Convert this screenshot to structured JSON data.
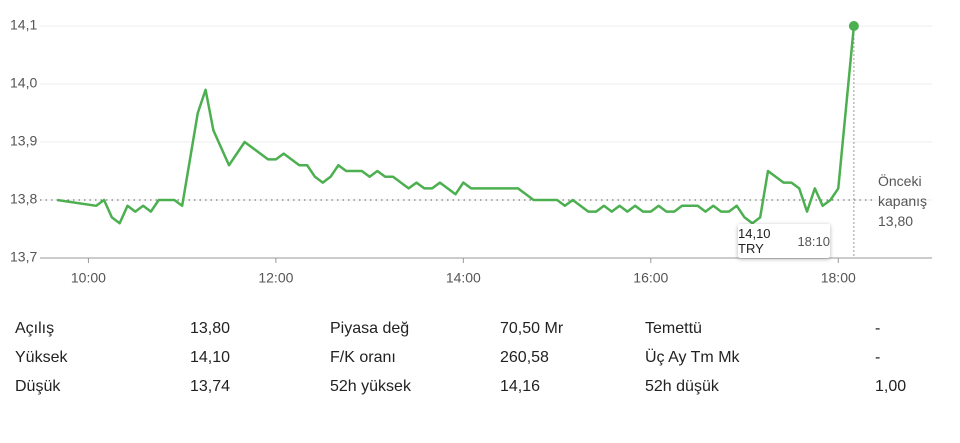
{
  "chart_data": {
    "type": "line",
    "x": [
      "09:40",
      "10:05",
      "10:10",
      "10:15",
      "10:20",
      "10:25",
      "10:30",
      "10:35",
      "10:40",
      "10:45",
      "10:55",
      "11:00",
      "11:10",
      "11:15",
      "11:20",
      "11:30",
      "11:40",
      "11:55",
      "12:00",
      "12:05",
      "12:15",
      "12:20",
      "12:25",
      "12:30",
      "12:35",
      "12:40",
      "12:45",
      "12:55",
      "13:00",
      "13:05",
      "13:10",
      "13:15",
      "13:25",
      "13:30",
      "13:35",
      "13:40",
      "13:45",
      "13:55",
      "14:00",
      "14:05",
      "14:35",
      "14:45",
      "15:00",
      "15:05",
      "15:10",
      "15:20",
      "15:25",
      "15:30",
      "15:35",
      "15:40",
      "15:45",
      "15:50",
      "15:55",
      "16:00",
      "16:05",
      "16:10",
      "16:15",
      "16:20",
      "16:30",
      "16:35",
      "16:40",
      "16:45",
      "16:50",
      "16:55",
      "17:00",
      "17:05",
      "17:10",
      "17:15",
      "17:25",
      "17:30",
      "17:35",
      "17:40",
      "17:45",
      "17:50",
      "17:55",
      "18:00",
      "18:10"
    ],
    "series": [
      {
        "color": "#4caf50",
        "values": [
          13.8,
          13.79,
          13.8,
          13.77,
          13.76,
          13.79,
          13.78,
          13.79,
          13.78,
          13.8,
          13.8,
          13.79,
          13.95,
          13.99,
          13.92,
          13.86,
          13.9,
          13.87,
          13.87,
          13.88,
          13.86,
          13.86,
          13.84,
          13.83,
          13.84,
          13.86,
          13.85,
          13.85,
          13.84,
          13.85,
          13.84,
          13.84,
          13.82,
          13.83,
          13.82,
          13.82,
          13.83,
          13.81,
          13.83,
          13.82,
          13.82,
          13.8,
          13.8,
          13.79,
          13.8,
          13.78,
          13.78,
          13.79,
          13.78,
          13.79,
          13.78,
          13.79,
          13.78,
          13.78,
          13.79,
          13.78,
          13.78,
          13.79,
          13.79,
          13.78,
          13.79,
          13.78,
          13.78,
          13.79,
          13.77,
          13.76,
          13.77,
          13.85,
          13.83,
          13.83,
          13.82,
          13.78,
          13.82,
          13.79,
          13.8,
          13.82,
          14.1
        ]
      }
    ],
    "xlim": [
      "09:29",
      "19:00"
    ],
    "xticks": [
      "10:00",
      "12:00",
      "14:00",
      "16:00",
      "18:00"
    ],
    "ylim": [
      13.7,
      14.1
    ],
    "yticks": [
      {
        "value": 13.7,
        "label": "13,7"
      },
      {
        "value": 13.8,
        "label": "13,8"
      },
      {
        "value": 13.9,
        "label": "13,9"
      },
      {
        "value": 14.0,
        "label": "14,0"
      },
      {
        "value": 14.1,
        "label": "14,1"
      }
    ],
    "grid": true,
    "previous_close": {
      "value": 13.8,
      "label": "13,80",
      "title": "Önceki kapanış"
    },
    "tooltip": {
      "value_label": "14,10 TRY",
      "time": "18:10"
    }
  },
  "stats": [
    [
      [
        "Açılış",
        "13,80"
      ],
      [
        "Piyasa değ",
        "70,50 Mr"
      ],
      [
        "Temettü",
        "-"
      ]
    ],
    [
      [
        "Yüksek",
        "14,10"
      ],
      [
        "F/K oranı",
        "260,58"
      ],
      [
        "Üç Ay Tm Mk",
        "-"
      ]
    ],
    [
      [
        "Düşük",
        "13,74"
      ],
      [
        "52h yüksek",
        "14,16"
      ],
      [
        "52h düşük",
        "1,00"
      ]
    ]
  ]
}
